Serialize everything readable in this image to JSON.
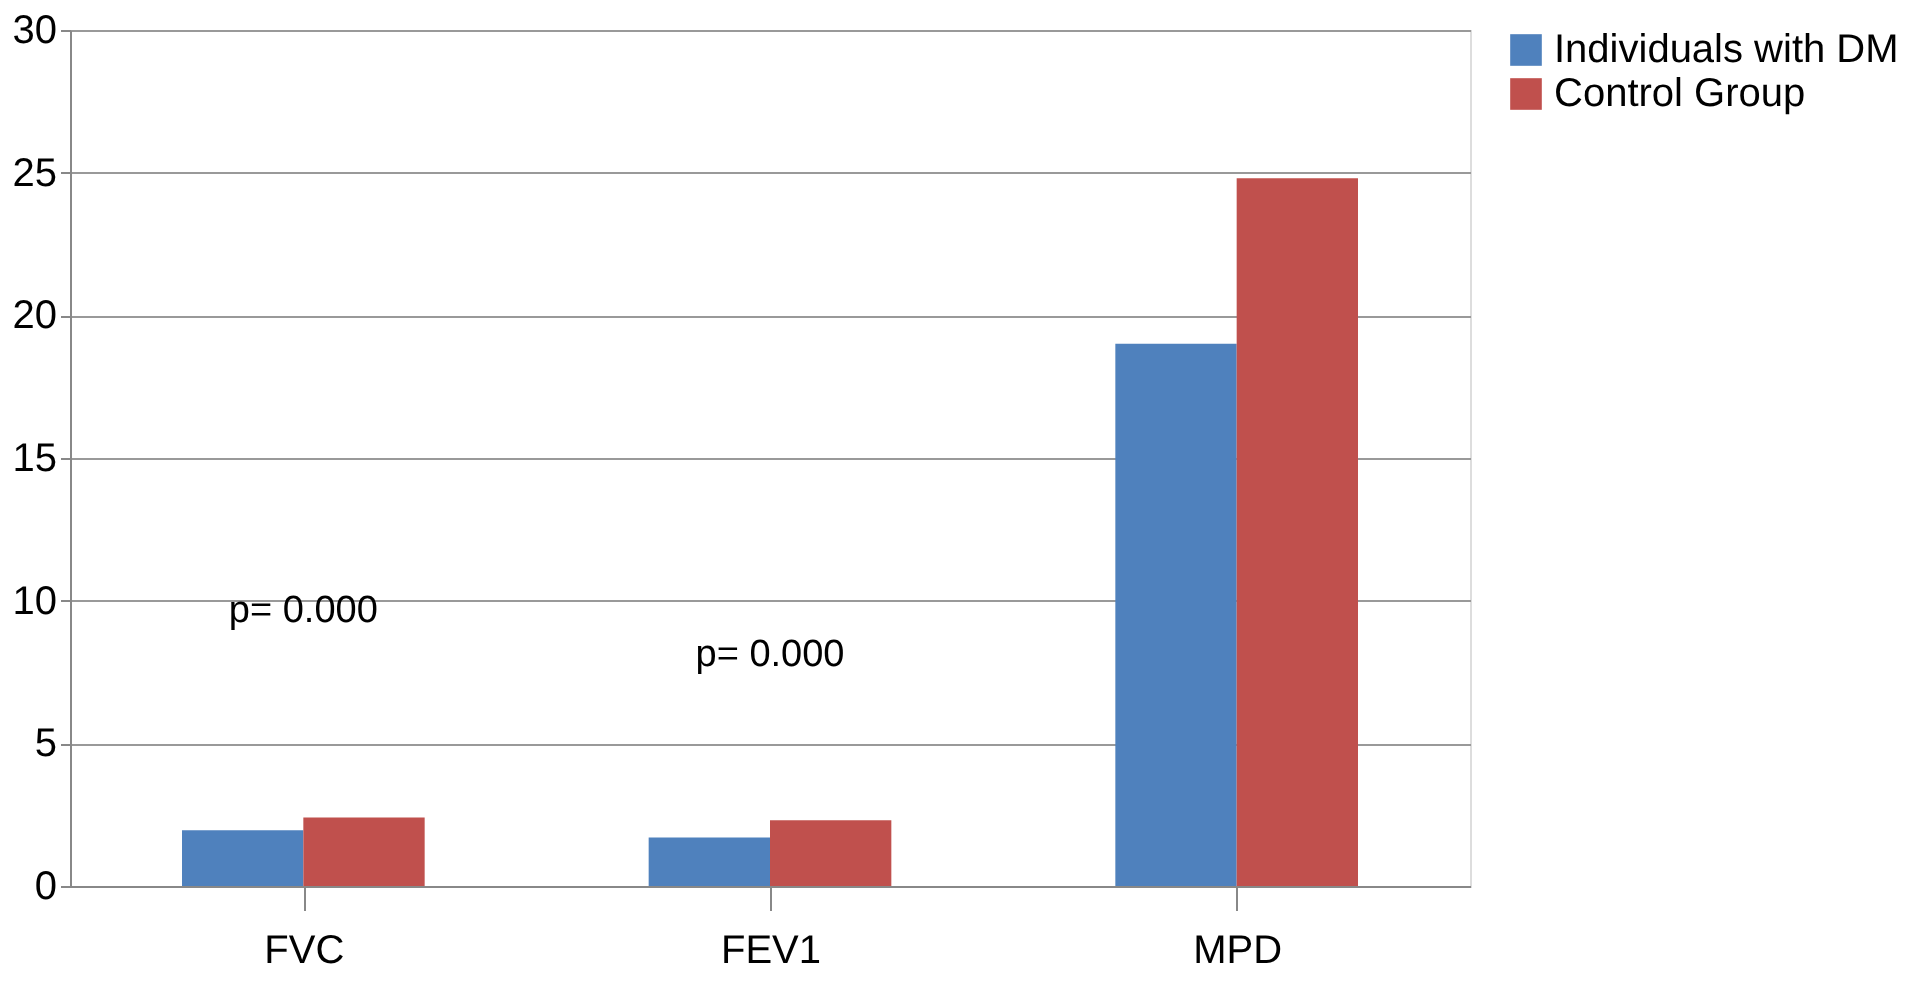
{
  "chart_data": {
    "type": "bar",
    "categories": [
      "FVC",
      "FEV1",
      "MPD"
    ],
    "series": [
      {
        "name": "Individuals with DM",
        "color": "#4f81bd",
        "values": [
          1.95,
          1.7,
          19.0
        ]
      },
      {
        "name": "Control Group",
        "color": "#c0504d",
        "values": [
          2.4,
          2.3,
          24.8
        ]
      }
    ],
    "ylim": [
      0,
      30
    ],
    "yticks": [
      0,
      5,
      10,
      15,
      20,
      25,
      30
    ],
    "grid": "y",
    "legend": "right",
    "annotations": [
      "p= 0.000",
      "p= 0.000"
    ]
  }
}
